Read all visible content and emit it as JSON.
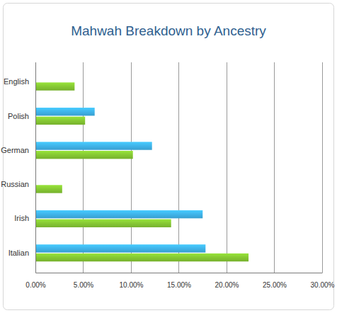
{
  "chart_data": {
    "type": "bar",
    "title": "Mahwah Breakdown by Ancestry",
    "orientation": "horizontal",
    "grid": true,
    "categories": [
      "English",
      "Polish",
      "German",
      "Russian",
      "Irish",
      "Italian"
    ],
    "series": [
      {
        "color": "#3fb4ea",
        "values": [
          null,
          6.2,
          12.2,
          null,
          17.5,
          17.8
        ]
      },
      {
        "color": "#86c933",
        "values": [
          4.1,
          5.2,
          10.2,
          2.8,
          14.2,
          22.3
        ]
      }
    ],
    "xlim": [
      0,
      30
    ],
    "xticks": [
      {
        "value": 0,
        "label": "0.00%"
      },
      {
        "value": 5,
        "label": "5.00%"
      },
      {
        "value": 10,
        "label": "10.00%"
      },
      {
        "value": 15,
        "label": "15.00%"
      },
      {
        "value": 20,
        "label": "20.00%"
      },
      {
        "value": 25,
        "label": "25.00%"
      },
      {
        "value": 30,
        "label": "30.00%"
      }
    ]
  }
}
